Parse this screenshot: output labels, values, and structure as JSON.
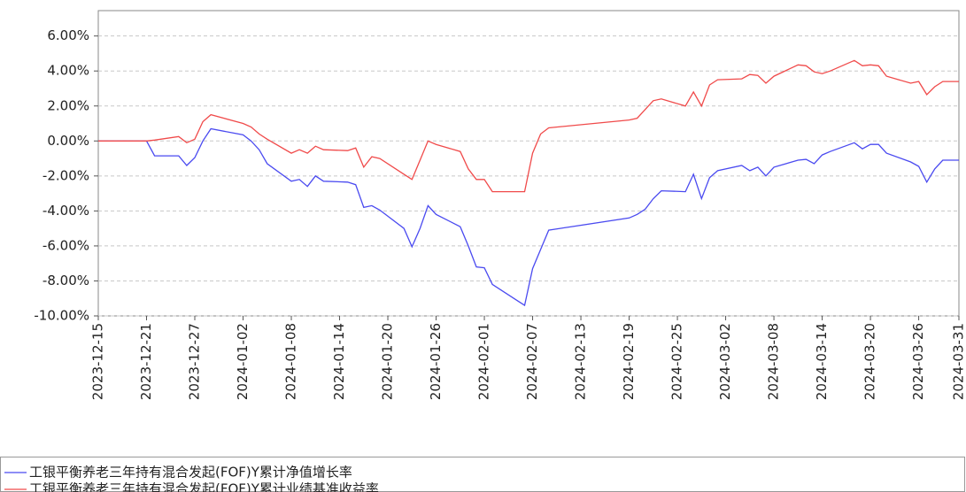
{
  "chart_data": {
    "type": "line",
    "x": [
      "2023-12-15",
      "2023-12-18",
      "2023-12-19",
      "2023-12-20",
      "2023-12-21",
      "2023-12-22",
      "2023-12-25",
      "2023-12-26",
      "2023-12-27",
      "2023-12-28",
      "2023-12-29",
      "2024-01-02",
      "2024-01-03",
      "2024-01-04",
      "2024-01-05",
      "2024-01-08",
      "2024-01-09",
      "2024-01-10",
      "2024-01-11",
      "2024-01-12",
      "2024-01-15",
      "2024-01-16",
      "2024-01-17",
      "2024-01-18",
      "2024-01-19",
      "2024-01-22",
      "2024-01-23",
      "2024-01-24",
      "2024-01-25",
      "2024-01-26",
      "2024-01-29",
      "2024-01-30",
      "2024-01-31",
      "2024-02-01",
      "2024-02-02",
      "2024-02-05",
      "2024-02-06",
      "2024-02-07",
      "2024-02-08",
      "2024-02-09",
      "2024-02-19",
      "2024-02-20",
      "2024-02-21",
      "2024-02-22",
      "2024-02-23",
      "2024-02-26",
      "2024-02-27",
      "2024-02-28",
      "2024-02-29",
      "2024-03-01",
      "2024-03-04",
      "2024-03-05",
      "2024-03-06",
      "2024-03-07",
      "2024-03-08",
      "2024-03-11",
      "2024-03-12",
      "2024-03-13",
      "2024-03-14",
      "2024-03-15",
      "2024-03-18",
      "2024-03-19",
      "2024-03-20",
      "2024-03-21",
      "2024-03-22",
      "2024-03-25",
      "2024-03-26",
      "2024-03-27",
      "2024-03-28",
      "2024-03-29",
      "2024-03-31"
    ],
    "series": [
      {
        "name": "工银平衡养老三年持有混合发起(FOF)Y累计净值增长率",
        "color": "#4a4af0",
        "values": [
          0,
          0,
          0,
          0,
          0,
          -0.85,
          -0.85,
          -1.4,
          -0.95,
          0.0,
          0.7,
          0.35,
          0.0,
          -0.5,
          -1.3,
          -2.3,
          -2.2,
          -2.6,
          -2.0,
          -2.3,
          -2.35,
          -2.5,
          -3.8,
          -3.7,
          -3.95,
          -5.0,
          -6.05,
          -5.0,
          -3.7,
          -4.2,
          -4.9,
          -6.0,
          -7.2,
          -7.25,
          -8.2,
          -9.1,
          -9.4,
          -7.3,
          -6.2,
          -5.1,
          -4.4,
          -4.2,
          -3.9,
          -3.3,
          -2.85,
          -2.9,
          -1.9,
          -3.3,
          -2.1,
          -1.7,
          -1.4,
          -1.7,
          -1.5,
          -2.0,
          -1.5,
          -1.1,
          -1.05,
          -1.3,
          -0.8,
          -0.6,
          -0.1,
          -0.45,
          -0.2,
          -0.2,
          -0.7,
          -1.2,
          -1.45,
          -2.35,
          -1.6,
          -1.1,
          -1.1
        ]
      },
      {
        "name": "工银平衡养老三年持有混合发起(FOF)Y累计业绩基准收益率",
        "color": "#f04a4a",
        "values": [
          0,
          0,
          0,
          0,
          0,
          0.05,
          0.25,
          -0.1,
          0.1,
          1.1,
          1.5,
          1.0,
          0.8,
          0.4,
          0.1,
          -0.7,
          -0.5,
          -0.7,
          -0.3,
          -0.5,
          -0.55,
          -0.4,
          -1.5,
          -0.9,
          -1.0,
          -1.9,
          -2.2,
          -1.1,
          0.0,
          -0.2,
          -0.6,
          -1.6,
          -2.2,
          -2.2,
          -2.9,
          -2.9,
          -2.9,
          -0.7,
          0.4,
          0.75,
          1.2,
          1.3,
          1.8,
          2.3,
          2.4,
          2.0,
          2.8,
          2.0,
          3.2,
          3.5,
          3.55,
          3.8,
          3.75,
          3.3,
          3.7,
          4.35,
          4.3,
          3.95,
          3.85,
          4.0,
          4.6,
          4.3,
          4.35,
          4.3,
          3.7,
          3.3,
          3.4,
          2.65,
          3.1,
          3.4,
          3.4
        ]
      }
    ],
    "xlim": [
      "2023-12-15",
      "2024-03-31"
    ],
    "xticks": [
      "2023-12-15",
      "2023-12-21",
      "2023-12-27",
      "2024-01-02",
      "2024-01-08",
      "2024-01-14",
      "2024-01-20",
      "2024-01-26",
      "2024-02-01",
      "2024-02-07",
      "2024-02-13",
      "2024-02-19",
      "2024-02-25",
      "2024-03-02",
      "2024-03-08",
      "2024-03-14",
      "2024-03-20",
      "2024-03-26",
      "2024-03-31"
    ],
    "ylim": [
      -10,
      7.45
    ],
    "yticks": [
      {
        "value": -10,
        "label": "-10.00%"
      },
      {
        "value": -8,
        "label": "-8.00%"
      },
      {
        "value": -6,
        "label": "-6.00%"
      },
      {
        "value": -4,
        "label": "-4.00%"
      },
      {
        "value": -2,
        "label": "-2.00%"
      },
      {
        "value": 0,
        "label": "0.00%"
      },
      {
        "value": 2,
        "label": "2.00%"
      },
      {
        "value": 4,
        "label": "4.00%"
      },
      {
        "value": 6,
        "label": "6.00%"
      }
    ],
    "grid": true
  }
}
